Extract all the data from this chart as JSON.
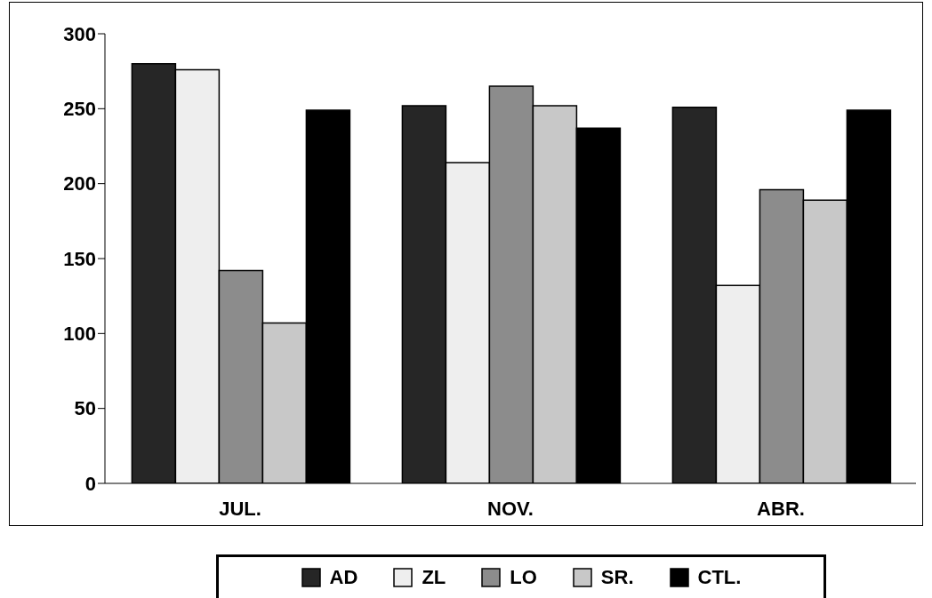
{
  "chart_data": {
    "type": "bar",
    "categories": [
      "JUL.",
      "NOV.",
      "ABR."
    ],
    "series": [
      {
        "name": "AD",
        "color": "#262626",
        "values": [
          280,
          252,
          251
        ]
      },
      {
        "name": "ZL",
        "color": "#eeeeee",
        "values": [
          276,
          214,
          132
        ]
      },
      {
        "name": "LO",
        "color": "#8c8c8c",
        "values": [
          142,
          265,
          196
        ]
      },
      {
        "name": "SR.",
        "color": "#c8c8c8",
        "values": [
          107,
          252,
          189
        ]
      },
      {
        "name": "CTL.",
        "color": "#000000",
        "values": [
          249,
          237,
          249
        ]
      }
    ],
    "ylim": [
      0,
      300
    ],
    "yticks": [
      0,
      50,
      100,
      150,
      200,
      250,
      300
    ],
    "grid": false,
    "legend": "bottom"
  }
}
